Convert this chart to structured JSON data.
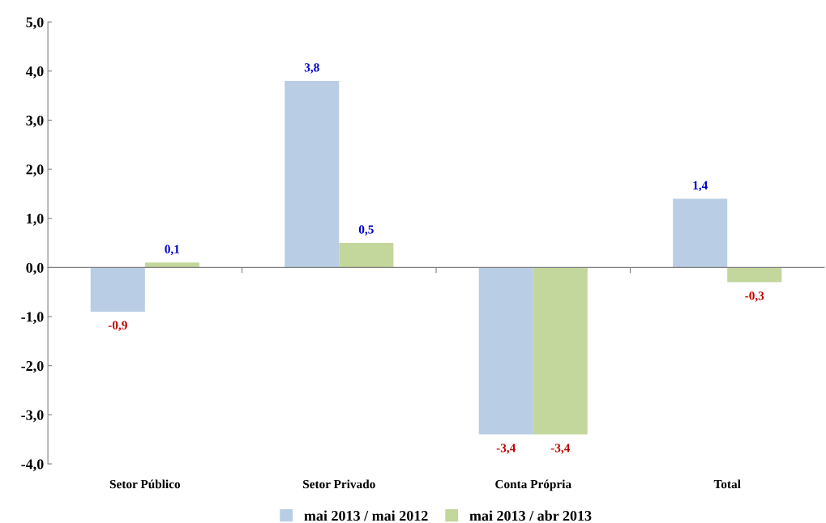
{
  "chart_data": {
    "type": "bar",
    "categories": [
      "Setor Público",
      "Setor Privado",
      "Conta Própria",
      "Total"
    ],
    "series": [
      {
        "name": "mai 2013 / mai 2012",
        "color": "#b9cde5",
        "values": [
          -0.9,
          3.8,
          -3.4,
          1.4
        ],
        "value_labels": [
          "-0,9",
          "3,8",
          "-3,4",
          "1,4"
        ]
      },
      {
        "name": "mai 2013 / abr 2013",
        "color": "#c3d69b",
        "values": [
          0.1,
          0.5,
          -3.4,
          -0.3
        ],
        "value_labels": [
          "0,1",
          "0,5",
          "-3,4",
          "-0,3"
        ]
      }
    ],
    "ylim": [
      -4,
      5
    ],
    "yticks": [
      {
        "value": -4,
        "label": "-4,0"
      },
      {
        "value": -3,
        "label": "-3,0"
      },
      {
        "value": -2,
        "label": "-2,0"
      },
      {
        "value": -1,
        "label": "-1,0"
      },
      {
        "value": 0,
        "label": "0,0"
      },
      {
        "value": 1,
        "label": "1,0"
      },
      {
        "value": 2,
        "label": "2,0"
      },
      {
        "value": 3,
        "label": "3,0"
      },
      {
        "value": 4,
        "label": "4,0"
      },
      {
        "value": 5,
        "label": "5,0"
      }
    ],
    "legend": "bottom"
  }
}
